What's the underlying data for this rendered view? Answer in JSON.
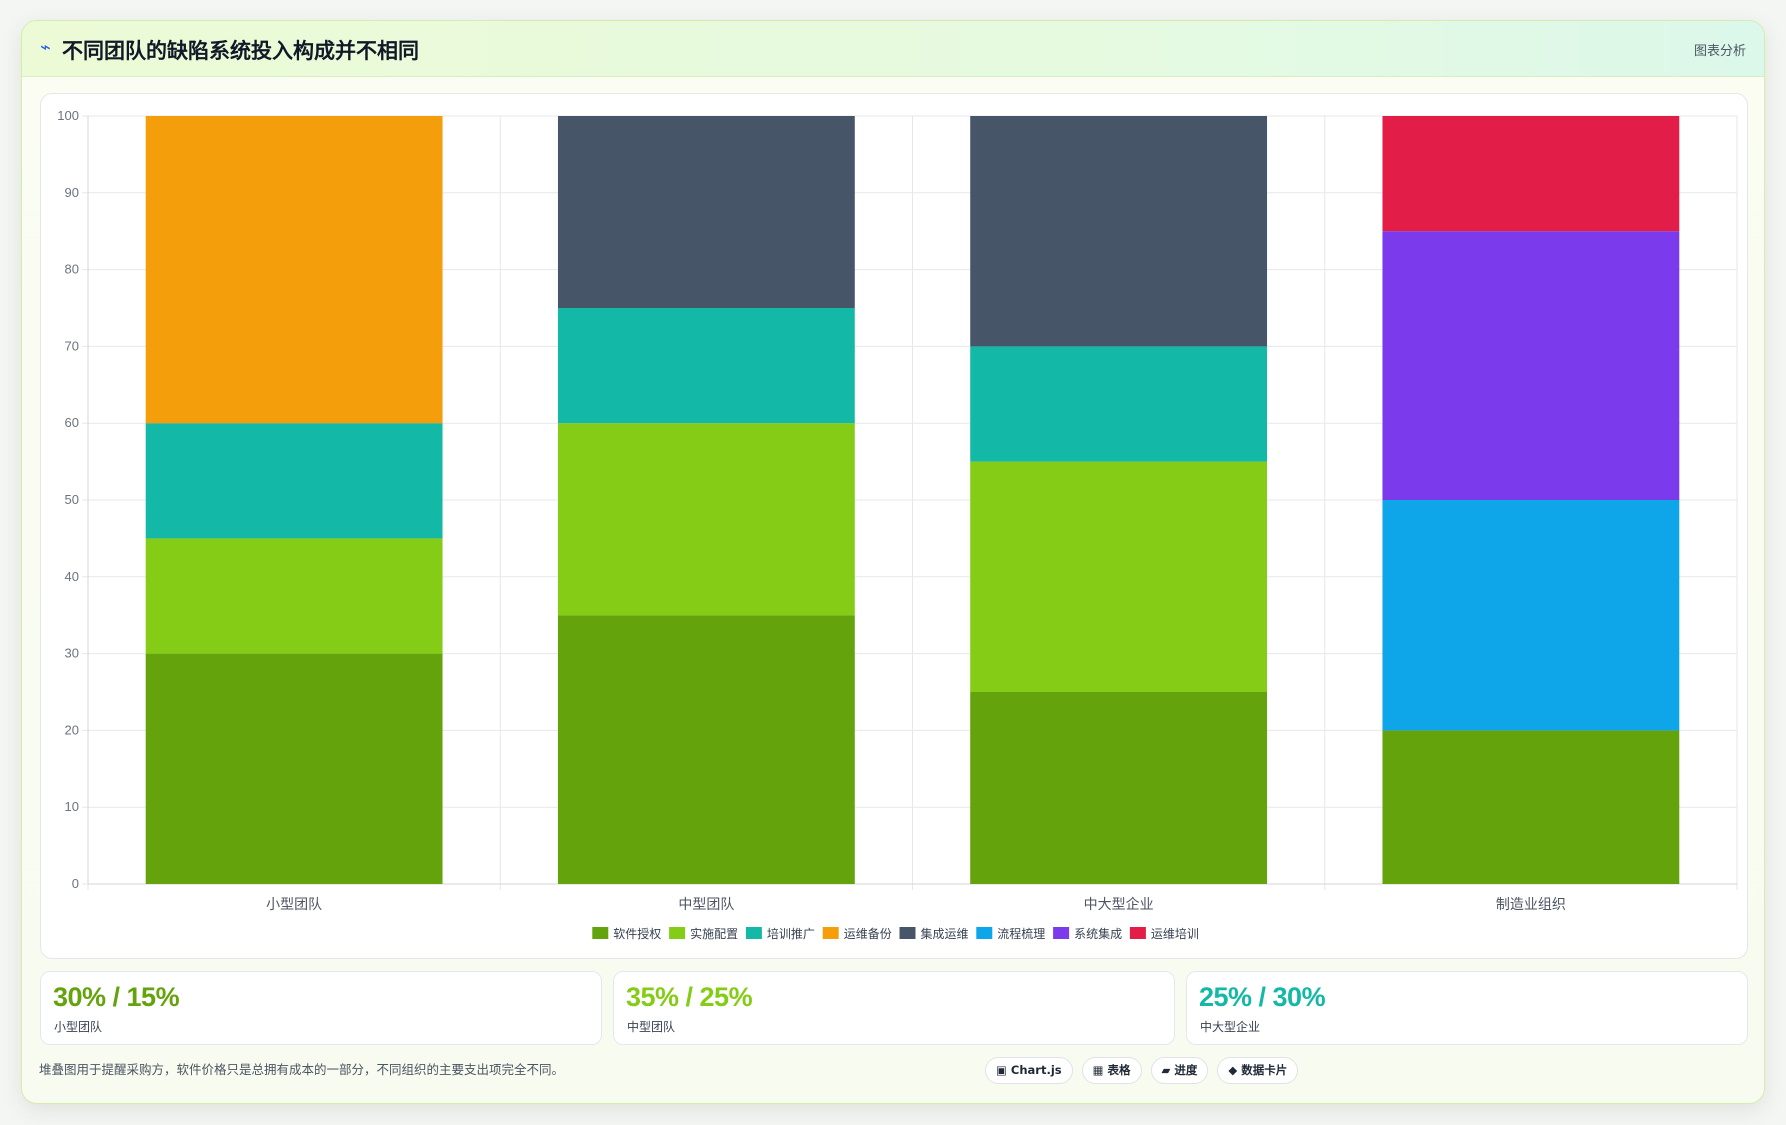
{
  "header": {
    "icon": "pulse-icon",
    "title": "不同团队的缺陷系统投入构成并不相同",
    "link_label": "图表分析"
  },
  "chart_data": {
    "type": "bar",
    "stacked": true,
    "title": "",
    "xlabel": "",
    "ylabel": "",
    "ylim": [
      0,
      100
    ],
    "yticks": [
      0,
      10,
      20,
      30,
      40,
      50,
      60,
      70,
      80,
      90,
      100
    ],
    "grid": true,
    "legend_position": "bottom",
    "categories": [
      "小型团队",
      "中型团队",
      "中大型企业",
      "制造业组织"
    ],
    "series": [
      {
        "name": "软件授权",
        "color": "#65a30d",
        "values": [
          30,
          35,
          25,
          20
        ]
      },
      {
        "name": "实施配置",
        "color": "#84cc16",
        "values": [
          15,
          25,
          30,
          0
        ]
      },
      {
        "name": "培训推广",
        "color": "#14b8a6",
        "values": [
          15,
          15,
          15,
          0
        ]
      },
      {
        "name": "运维备份",
        "color": "#f59e0b",
        "values": [
          40,
          0,
          0,
          0
        ]
      },
      {
        "name": "集成运维",
        "color": "#475569",
        "values": [
          0,
          25,
          30,
          0
        ]
      },
      {
        "name": "流程梳理",
        "color": "#0ea5e9",
        "values": [
          0,
          0,
          0,
          30
        ]
      },
      {
        "name": "系统集成",
        "color": "#7c3aed",
        "values": [
          0,
          0,
          0,
          35
        ]
      },
      {
        "name": "运维培训",
        "color": "#e11d48",
        "values": [
          0,
          0,
          0,
          15
        ]
      }
    ]
  },
  "stats": [
    {
      "value": "30% / 15%",
      "label": "小型团队",
      "color": "#65a30d"
    },
    {
      "value": "35% / 25%",
      "label": "中型团队",
      "color": "#84cc16"
    },
    {
      "value": "25% / 30%",
      "label": "中大型企业",
      "color": "#14b8a6"
    }
  ],
  "footer": {
    "note": "堆叠图用于提醒采购方，软件价格只是总拥有成本的一部分，不同组织的主要支出项完全不同。",
    "pills": [
      {
        "icon": "chart-icon",
        "glyph": "▣",
        "label": "Chart.js"
      },
      {
        "icon": "table-icon",
        "glyph": "▦",
        "label": "表格"
      },
      {
        "icon": "progress-icon",
        "glyph": "▰",
        "label": "进度"
      },
      {
        "icon": "card-icon",
        "glyph": "◆",
        "label": "数据卡片"
      }
    ]
  }
}
